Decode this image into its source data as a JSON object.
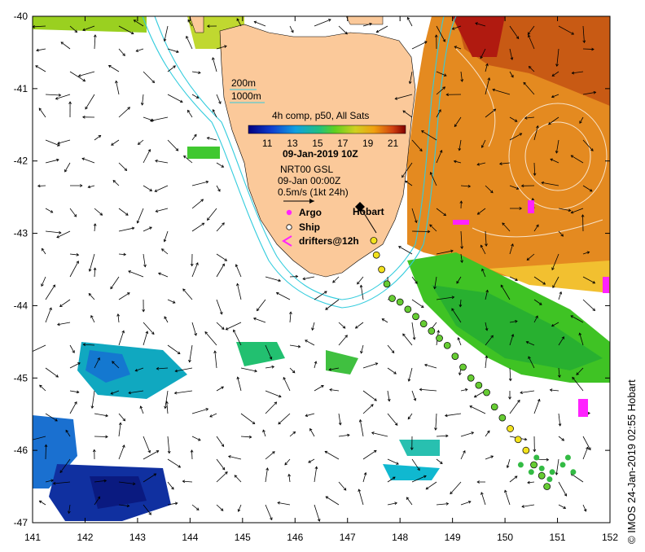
{
  "axes": {
    "x_ticks": [
      "141",
      "142",
      "143",
      "144",
      "145",
      "146",
      "147",
      "148",
      "149",
      "150",
      "151",
      "152"
    ],
    "y_ticks": [
      "-40",
      "-41",
      "-42",
      "-43",
      "-44",
      "-45",
      "-46",
      "-47"
    ]
  },
  "legend": {
    "isobath_200": "200m",
    "isobath_1000": "1000m",
    "product": "4h comp, p50, All Sats",
    "colorbar_ticks": [
      "11",
      "13",
      "15",
      "17",
      "19",
      "21"
    ],
    "date": "09-Jan-2019 10Z",
    "current_source": "NRT00 GSL",
    "current_time": "09-Jan 00:00Z",
    "current_scale": "0.5m/s (1kt 24h)",
    "argo": "Argo",
    "ship": "Ship",
    "drifters": "drifters@12h"
  },
  "place": {
    "hobart": "Hobart"
  },
  "credit": "© IMOS 24-Jan-2019 02:55 Hobart",
  "colors": {
    "land": "#fbc99a",
    "isobath": "#33ccdd",
    "argo": "#ff22ff",
    "ship_track_yellow": "#f2e21e",
    "ship_track_green": "#66cc33",
    "warm": "#e07a10",
    "hot": "#c02010",
    "cool_green": "#44cc22",
    "cold_blue": "#1848c0"
  },
  "ship_track": [
    [
      147.5,
      -43.1
    ],
    [
      147.55,
      -43.3
    ],
    [
      147.65,
      -43.5
    ],
    [
      147.75,
      -43.7
    ],
    [
      147.85,
      -43.9
    ],
    [
      148.0,
      -43.95
    ],
    [
      148.15,
      -44.05
    ],
    [
      148.3,
      -44.15
    ],
    [
      148.45,
      -44.25
    ],
    [
      148.6,
      -44.35
    ],
    [
      148.75,
      -44.45
    ],
    [
      148.9,
      -44.55
    ],
    [
      149.05,
      -44.7
    ],
    [
      149.2,
      -44.85
    ],
    [
      149.35,
      -45.0
    ],
    [
      149.5,
      -45.1
    ],
    [
      149.65,
      -45.2
    ],
    [
      149.8,
      -45.4
    ],
    [
      149.95,
      -45.55
    ],
    [
      150.1,
      -45.7
    ],
    [
      150.25,
      -45.85
    ],
    [
      150.4,
      -46.0
    ],
    [
      150.55,
      -46.2
    ],
    [
      150.7,
      -46.35
    ],
    [
      150.8,
      -46.5
    ]
  ],
  "drifter_cluster": [
    [
      150.3,
      -46.2
    ],
    [
      150.5,
      -46.3
    ],
    [
      150.7,
      -46.25
    ],
    [
      150.9,
      -46.3
    ],
    [
      151.1,
      -46.2
    ],
    [
      151.3,
      -46.3
    ],
    [
      151.2,
      -46.1
    ],
    [
      150.6,
      -46.1
    ],
    [
      150.85,
      -46.4
    ]
  ]
}
